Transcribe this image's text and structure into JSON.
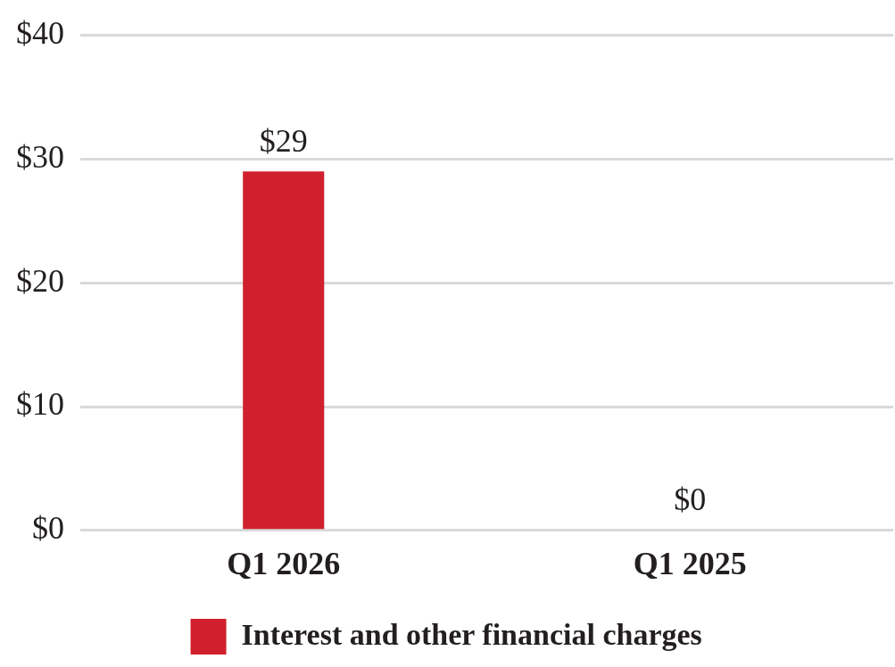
{
  "chart_data": {
    "type": "bar",
    "categories": [
      "Q1 2026",
      "Q1 2025"
    ],
    "series": [
      {
        "name": "Interest and other financial charges",
        "color": "#d0202e",
        "values": [
          29,
          0
        ],
        "value_labels": [
          "$29",
          "$0"
        ]
      }
    ],
    "ylim": [
      0,
      40
    ],
    "yticks": [
      {
        "value": 0,
        "label": "$0"
      },
      {
        "value": 10,
        "label": "$10"
      },
      {
        "value": 20,
        "label": "$20"
      },
      {
        "value": 30,
        "label": "$30"
      },
      {
        "value": 40,
        "label": "$40"
      }
    ],
    "grid": "y",
    "legend": "bottom"
  }
}
